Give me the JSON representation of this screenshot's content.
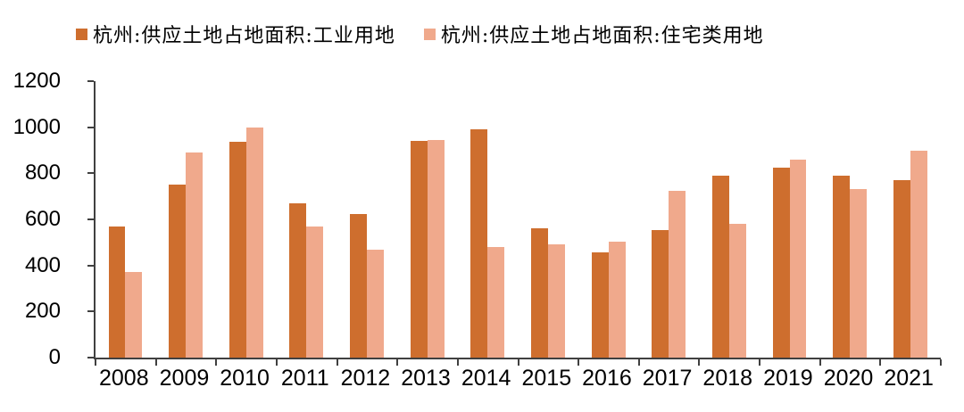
{
  "chart_data": {
    "type": "bar",
    "title": "",
    "categories": [
      "2008",
      "2009",
      "2010",
      "2011",
      "2012",
      "2013",
      "2014",
      "2015",
      "2016",
      "2017",
      "2018",
      "2019",
      "2020",
      "2021"
    ],
    "series": [
      {
        "name": "杭州:供应土地占地面积:工业用地",
        "color": "#CE6E2E",
        "values": [
          570,
          750,
          935,
          670,
          625,
          940,
          990,
          560,
          455,
          555,
          790,
          825,
          790,
          770
        ]
      },
      {
        "name": "杭州:供应土地占地面积:住宅类用地",
        "color": "#F0A98C",
        "values": [
          370,
          890,
          1000,
          570,
          470,
          945,
          480,
          490,
          505,
          725,
          580,
          860,
          730,
          900
        ]
      }
    ],
    "xlabel": "",
    "ylabel": "",
    "ylim": [
      0,
      1200
    ],
    "ytick_step": 200,
    "grid": false,
    "legend_position": "top",
    "axis_color": "#404040",
    "text_color": "#000000"
  }
}
